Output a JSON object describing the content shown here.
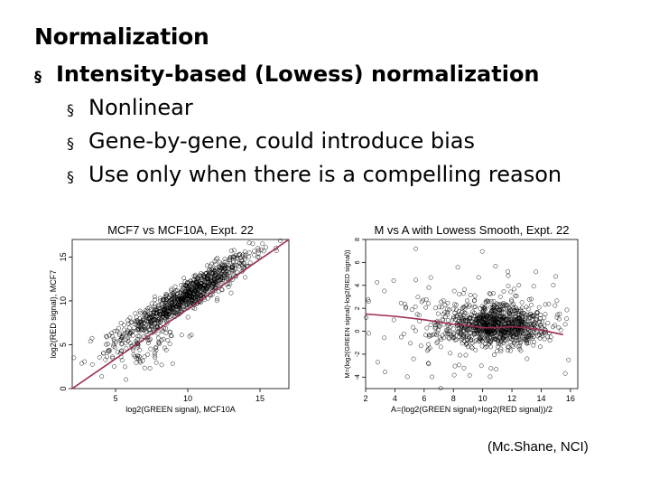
{
  "slide": {
    "heading": "Normalization",
    "bullets": [
      {
        "level": 1,
        "text": "Intensity-based (Lowess) normalization"
      },
      {
        "level": 2,
        "text": "Nonlinear"
      },
      {
        "level": 2,
        "text": "Gene-by-gene, could introduce bias"
      },
      {
        "level": 2,
        "text": "Use only when there is a compelling reason"
      }
    ],
    "bullet_symbol": "§",
    "credit": "(Mc.Shane, NCI)"
  },
  "chart_data": [
    {
      "type": "scatter",
      "title": "MCF7 vs MCF10A, Expt. 22",
      "xlabel": "log2(GREEN signal), MCF10A",
      "ylabel": "log2(RED signal), MCF7",
      "xlim": [
        2,
        17
      ],
      "ylim": [
        0,
        17
      ],
      "xticks": [
        5,
        10,
        15
      ],
      "yticks": [
        0,
        5,
        10,
        15
      ],
      "point_color": "#000000",
      "line_color": "#9c2a55",
      "overlay": {
        "name": "identity line",
        "x": [
          2,
          17
        ],
        "y": [
          0,
          17
        ]
      },
      "clusters": [
        {
          "center": [
            10.0,
            10.6
          ],
          "spread": [
            2.2,
            0.9
          ],
          "slope": 1.0,
          "count": 900
        },
        {
          "center": [
            6.8,
            5.0
          ],
          "spread": [
            1.5,
            1.6
          ],
          "slope": 0.4,
          "count": 110
        }
      ]
    },
    {
      "type": "scatter",
      "title": "M vs A with Lowess Smooth, Expt. 22",
      "xlabel": "A=(log2(GREEN signal)+log2(RED signal))/2",
      "ylabel": "M=(log2(GREEN signal)-log2(RED signal))",
      "xlim": [
        2,
        16.5
      ],
      "ylim": [
        -5,
        8
      ],
      "xticks": [
        2,
        4,
        6,
        8,
        10,
        12,
        14,
        16
      ],
      "yticks": [
        -4,
        -2,
        0,
        2,
        4,
        6,
        8
      ],
      "point_color": "#000000",
      "line_color": "#9c2a55",
      "overlay": {
        "name": "lowess smooth",
        "x": [
          2,
          4,
          6,
          8,
          9,
          10,
          11,
          12,
          13,
          14,
          15.5
        ],
        "y": [
          1.5,
          1.3,
          1.0,
          0.6,
          0.5,
          0.3,
          0.3,
          0.4,
          0.3,
          0.1,
          -0.3
        ]
      },
      "clusters": [
        {
          "center": [
            11.0,
            0.5
          ],
          "spread": [
            1.8,
            0.9
          ],
          "slope": 0,
          "count": 900
        },
        {
          "center": [
            8.5,
            0.8
          ],
          "spread": [
            3.2,
            2.4
          ],
          "slope": 0,
          "count": 160
        }
      ]
    }
  ]
}
